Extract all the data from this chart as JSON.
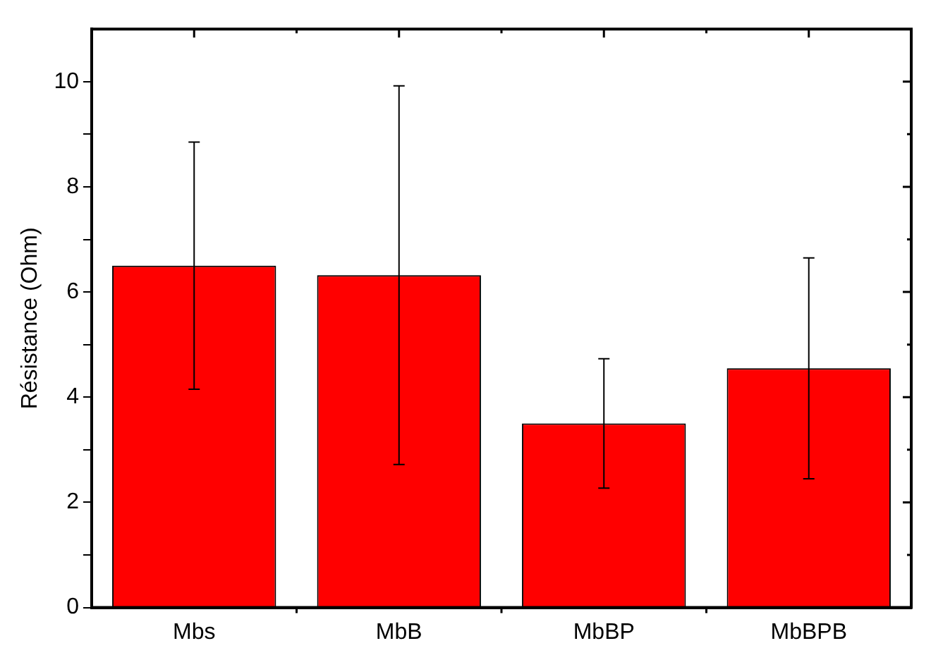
{
  "chart_data": {
    "type": "bar",
    "categories": [
      "Mbs",
      "MbB",
      "MbBP",
      "MbBPB"
    ],
    "values": [
      6.5,
      6.32,
      3.5,
      4.55
    ],
    "errors": [
      2.35,
      3.6,
      1.23,
      2.1
    ],
    "color": "#ff0000",
    "ylabel": "Résistance (Ohm)",
    "ylim": [
      0,
      11
    ],
    "yticks": [
      0,
      {
        "value": 1,
        "label": null
      },
      2,
      {
        "value": 3,
        "label": null
      },
      4,
      {
        "value": 5,
        "label": null
      },
      6,
      {
        "value": 7,
        "label": null
      },
      8,
      {
        "value": 9,
        "label": null
      },
      10
    ],
    "grid": false,
    "legend": false
  }
}
